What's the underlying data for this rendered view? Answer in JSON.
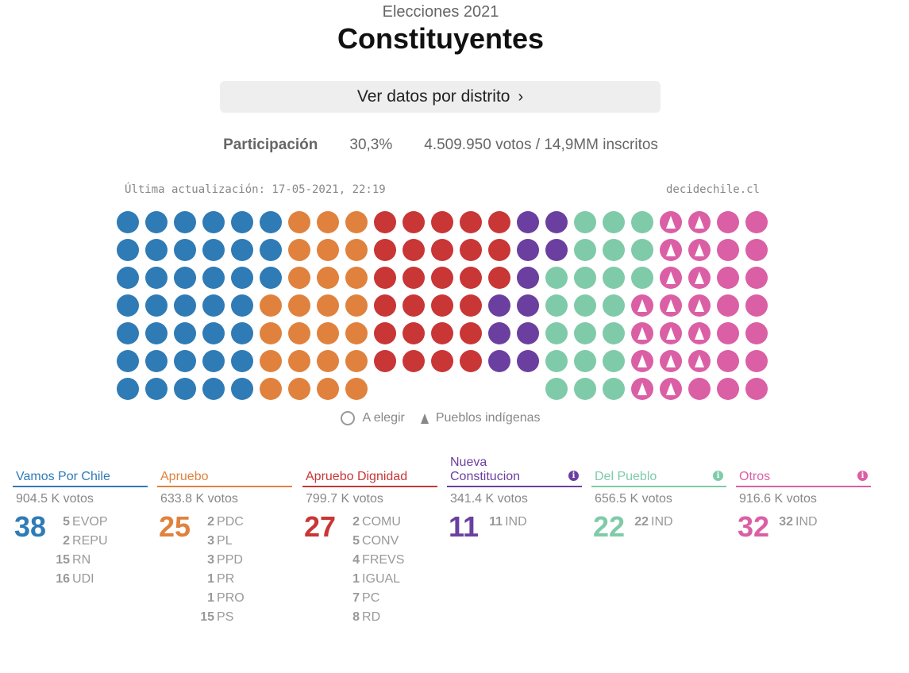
{
  "header": {
    "subtitle": "Elecciones 2021",
    "title": "Constituyentes",
    "district_button": "Ver datos por distrito",
    "chevron": "›"
  },
  "participation": {
    "label": "Participación",
    "percent": "30,3%",
    "detail": "4.509.950 votos / 14,9MM inscritos"
  },
  "meta": {
    "updated": "Última actualización: 17-05-2021, 22:19",
    "source": "decidechile.cl"
  },
  "legend": {
    "to_elect": "A elegir",
    "indigenous": "Pueblos indígenas"
  },
  "colors": {
    "vamos": "#2f7bb6",
    "apruebo": "#e0823d",
    "dignidad": "#c93636",
    "nueva": "#6b3fa0",
    "pueblo": "#7fcba9",
    "otros": "#db5fa5"
  },
  "seat_columns": [
    {
      "group": "vamos",
      "count": 7,
      "indigenous": 0
    },
    {
      "group": "vamos",
      "count": 7,
      "indigenous": 0
    },
    {
      "group": "vamos",
      "count": 7,
      "indigenous": 0
    },
    {
      "group": "vamos",
      "count": 7,
      "indigenous": 0
    },
    {
      "group": "vamos",
      "count": 7,
      "indigenous": 0
    },
    {
      "group": "vamos",
      "count": 3,
      "indigenous": 0,
      "then": {
        "group": "apruebo",
        "count": 4
      }
    },
    {
      "group": "apruebo",
      "count": 7,
      "indigenous": 0
    },
    {
      "group": "apruebo",
      "count": 7,
      "indigenous": 0
    },
    {
      "group": "apruebo",
      "count": 7,
      "indigenous": 0
    },
    {
      "group": "dignidad",
      "count": 6,
      "indigenous": 0
    },
    {
      "group": "dignidad",
      "count": 6,
      "indigenous": 0
    },
    {
      "group": "dignidad",
      "count": 6,
      "indigenous": 0
    },
    {
      "group": "dignidad",
      "count": 6,
      "indigenous": 0
    },
    {
      "group": "dignidad",
      "count": 3,
      "indigenous": 0,
      "then": {
        "group": "nueva",
        "count": 3
      }
    },
    {
      "group": "nueva",
      "count": 6,
      "indigenous": 0
    },
    {
      "group": "nueva",
      "count": 2,
      "indigenous": 0,
      "then": {
        "group": "pueblo",
        "count": 5
      }
    },
    {
      "group": "pueblo",
      "count": 7,
      "indigenous": 0
    },
    {
      "group": "pueblo",
      "count": 7,
      "indigenous": 0
    },
    {
      "group": "pueblo",
      "count": 3,
      "indigenous": 0,
      "then": {
        "group": "otros",
        "count": 4,
        "indigenous": 4
      }
    },
    {
      "group": "otros",
      "count": 7,
      "indigenous": 7
    },
    {
      "group": "otros",
      "count": 7,
      "indigenous": 6
    },
    {
      "group": "otros",
      "count": 7,
      "indigenous": 0
    },
    {
      "group": "otros",
      "count": 7,
      "indigenous": 0
    }
  ],
  "coalitions": [
    {
      "key": "vamos",
      "name": "Vamos Por Chile",
      "votes": "904.5 K votos",
      "total": "38",
      "info": false,
      "parties": [
        {
          "n": "5",
          "p": "EVOP"
        },
        {
          "n": "2",
          "p": "REPU"
        },
        {
          "n": "15",
          "p": "RN"
        },
        {
          "n": "16",
          "p": "UDI"
        }
      ]
    },
    {
      "key": "apruebo",
      "name": "Apruebo",
      "votes": "633.8 K votos",
      "total": "25",
      "info": false,
      "parties": [
        {
          "n": "2",
          "p": "PDC"
        },
        {
          "n": "3",
          "p": "PL"
        },
        {
          "n": "3",
          "p": "PPD"
        },
        {
          "n": "1",
          "p": "PR"
        },
        {
          "n": "1",
          "p": "PRO"
        },
        {
          "n": "15",
          "p": "PS"
        }
      ]
    },
    {
      "key": "dignidad",
      "name": "Apruebo Dignidad",
      "votes": "799.7 K votos",
      "total": "27",
      "info": false,
      "parties": [
        {
          "n": "2",
          "p": "COMU"
        },
        {
          "n": "5",
          "p": "CONV"
        },
        {
          "n": "4",
          "p": "FREVS"
        },
        {
          "n": "1",
          "p": "IGUAL"
        },
        {
          "n": "7",
          "p": "PC"
        },
        {
          "n": "8",
          "p": "RD"
        }
      ]
    },
    {
      "key": "nueva",
      "name": "Nueva Constitucion",
      "votes": "341.4 K votos",
      "total": "11",
      "info": true,
      "parties": [
        {
          "n": "11",
          "p": "IND"
        }
      ]
    },
    {
      "key": "pueblo",
      "name": "Del Pueblo",
      "votes": "656.5 K votos",
      "total": "22",
      "info": true,
      "parties": [
        {
          "n": "22",
          "p": "IND"
        }
      ]
    },
    {
      "key": "otros",
      "name": "Otros",
      "votes": "916.6 K votos",
      "total": "32",
      "info": true,
      "parties": [
        {
          "n": "32",
          "p": "IND"
        }
      ]
    }
  ]
}
